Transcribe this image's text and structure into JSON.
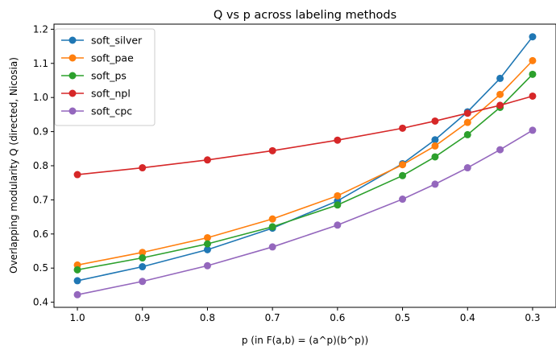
{
  "chart_data": {
    "type": "line",
    "title": "Q vs p across labeling methods",
    "xlabel": "p (in F(a,b) = (a^p)(b^p))",
    "ylabel": "Overlapping modularity Q (directed, Nicosia)",
    "x": [
      1.0,
      0.9,
      0.8,
      0.7,
      0.6,
      0.5,
      0.45,
      0.4,
      0.35,
      0.3
    ],
    "x_ticks": [
      1.0,
      0.9,
      0.8,
      0.7,
      0.6,
      0.5,
      0.4,
      0.3
    ],
    "x_tick_labels": [
      "1.0",
      "0.9",
      "0.8",
      "0.7",
      "0.6",
      "0.5",
      "0.4",
      "0.3"
    ],
    "xlim": [
      1.036,
      0.264
    ],
    "y_ticks": [
      0.4,
      0.5,
      0.6,
      0.7,
      0.8,
      0.9,
      1.0,
      1.1,
      1.2
    ],
    "y_tick_labels": [
      "0.4",
      "0.5",
      "0.6",
      "0.7",
      "0.8",
      "0.9",
      "1.0",
      "1.1",
      "1.2"
    ],
    "ylim": [
      0.385,
      1.215
    ],
    "grid": false,
    "legend_position": "top-left",
    "series": [
      {
        "name": "soft_silver",
        "color": "#1f77b4",
        "values": [
          0.463,
          0.504,
          0.554,
          0.617,
          0.697,
          0.806,
          0.876,
          0.958,
          1.056,
          1.178
        ]
      },
      {
        "name": "soft_pae",
        "color": "#ff7f0e",
        "values": [
          0.509,
          0.546,
          0.589,
          0.644,
          0.712,
          0.803,
          0.858,
          0.927,
          1.009,
          1.108
        ]
      },
      {
        "name": "soft_ps",
        "color": "#2ca02c",
        "values": [
          0.495,
          0.53,
          0.571,
          0.621,
          0.685,
          0.771,
          0.826,
          0.891,
          0.971,
          1.068
        ]
      },
      {
        "name": "soft_npl",
        "color": "#d62728",
        "values": [
          0.774,
          0.794,
          0.817,
          0.844,
          0.875,
          0.91,
          0.931,
          0.954,
          0.977,
          1.004
        ]
      },
      {
        "name": "soft_cpc",
        "color": "#9467bd",
        "values": [
          0.422,
          0.461,
          0.507,
          0.562,
          0.626,
          0.702,
          0.746,
          0.794,
          0.847,
          0.904
        ]
      }
    ]
  }
}
